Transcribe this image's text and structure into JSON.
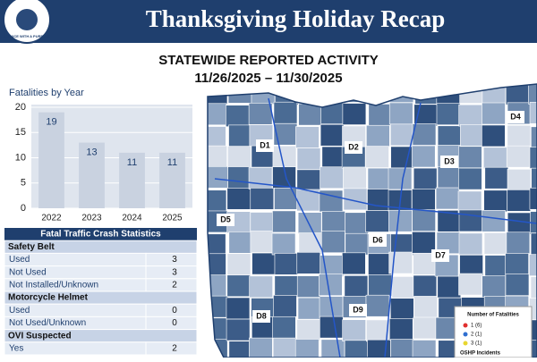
{
  "header": {
    "seal_text": "SERVICE WITH A PURPOSE",
    "title": "Thanksgiving Holiday Recap"
  },
  "subtitle": {
    "line1": "STATEWIDE REPORTED ACTIVITY",
    "line2": "11/26/2025 – 11/30/2025"
  },
  "chart_data": {
    "type": "bar",
    "title": "Fatalities by Year",
    "categories": [
      "2022",
      "2023",
      "2024",
      "2025"
    ],
    "values": [
      19,
      13,
      11,
      11
    ],
    "color": "#c9d2e0",
    "ylim": [
      0,
      20
    ],
    "yticks": [
      0,
      5,
      10,
      15,
      20
    ],
    "grid": true
  },
  "table": {
    "title": "Fatal Traffic Crash Statistics",
    "sections": [
      {
        "name": "Safety Belt",
        "rows": [
          [
            "Used",
            "3"
          ],
          [
            "Not Used",
            "3"
          ],
          [
            "Not Installed/Unknown",
            "2"
          ]
        ]
      },
      {
        "name": "Motorcycle Helmet",
        "rows": [
          [
            "Used",
            "0"
          ],
          [
            "Not Used/Unknown",
            "0"
          ]
        ]
      },
      {
        "name": "OVI Suspected",
        "rows": [
          [
            "Yes",
            "2"
          ]
        ]
      }
    ]
  },
  "map": {
    "districts": [
      "D1",
      "D2",
      "D3",
      "D4",
      "D5",
      "D6",
      "D7",
      "D8",
      "D9"
    ],
    "legend": {
      "title": "Number of Fatalities",
      "items": [
        "1 (6)",
        "2 (1)",
        "3 (1)"
      ],
      "footer": "OSHP Incidents"
    }
  }
}
